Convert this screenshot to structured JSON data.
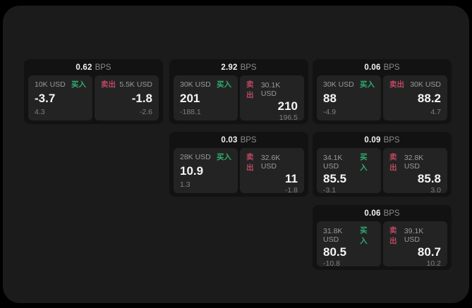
{
  "labels": {
    "bps_unit": "BPS",
    "buy": "买入",
    "sell": "卖出"
  },
  "colors": {
    "background": "#000000",
    "panel": "#1b1b1c",
    "card": "#121212",
    "pane": "#232324",
    "buy_accent": "#2fae6e",
    "sell_accent": "#bb4960"
  },
  "cards": [
    {
      "bps": "0.62",
      "buy": {
        "amount": "10K USD",
        "value": "-3.7",
        "delta": "4.3"
      },
      "sell": {
        "amount": "5.5K USD",
        "value": "-1.8",
        "delta": "-2.6"
      }
    },
    {
      "bps": "2.92",
      "buy": {
        "amount": "30K USD",
        "value": "201",
        "delta": "-188.1"
      },
      "sell": {
        "amount": "30.1K USD",
        "value": "210",
        "delta": "196.5"
      }
    },
    {
      "bps": "0.06",
      "buy": {
        "amount": "30K USD",
        "value": "88",
        "delta": "-4.9"
      },
      "sell": {
        "amount": "30K USD",
        "value": "88.2",
        "delta": "4.7"
      }
    },
    {
      "bps": "0.03",
      "buy": {
        "amount": "28K USD",
        "value": "10.9",
        "delta": "1.3"
      },
      "sell": {
        "amount": "32.6K USD",
        "value": "11",
        "delta": "-1.8"
      }
    },
    {
      "bps": "0.09",
      "buy": {
        "amount": "34.1K USD",
        "value": "85.5",
        "delta": "-3.1"
      },
      "sell": {
        "amount": "32.8K USD",
        "value": "85.8",
        "delta": "3.0"
      }
    },
    {
      "bps": "0.06",
      "buy": {
        "amount": "31.8K USD",
        "value": "80.5",
        "delta": "-10.8"
      },
      "sell": {
        "amount": "39.1K USD",
        "value": "80.7",
        "delta": "10.2"
      }
    }
  ]
}
